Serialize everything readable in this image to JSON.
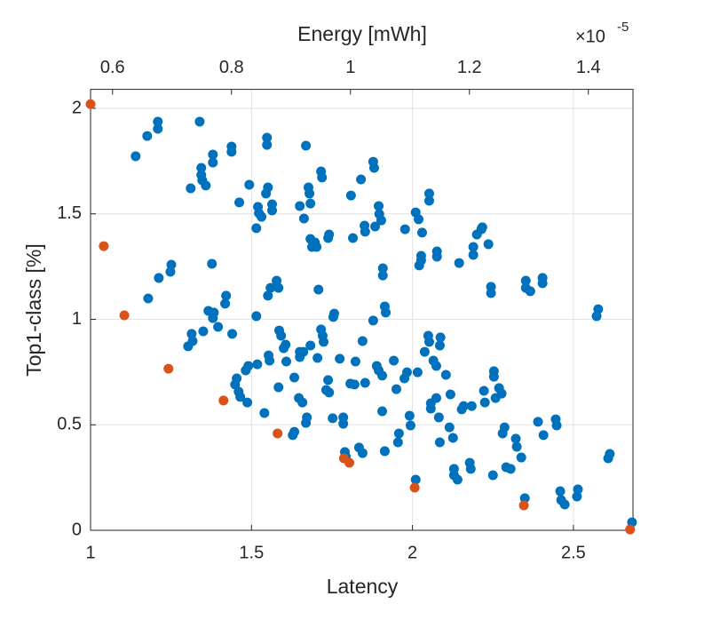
{
  "chart_data": {
    "type": "scatter",
    "xlabel": "Latency",
    "ylabel": "Top1-class [%]",
    "x2label": "Energy [mWh]",
    "x2_multiplier": "×10",
    "x2_exponent": "-5",
    "xlim": [
      1,
      2.685
    ],
    "xticks": [
      1,
      1.5,
      2,
      2.5
    ],
    "x2lim": [
      0.563,
      1.475
    ],
    "x2ticks": [
      0.6,
      0.8,
      1,
      1.2,
      1.4
    ],
    "ylim": [
      0,
      2.09
    ],
    "yticks": [
      0,
      0.5,
      1,
      1.5,
      2
    ],
    "grid": true,
    "series": [
      {
        "color": "#0072BD",
        "x": [
          1.14,
          1.176,
          1.209,
          1.209,
          1.339,
          1.344,
          1.344,
          1.347,
          1.358,
          1.311,
          1.38,
          1.38,
          1.377,
          1.438,
          1.438,
          1.462,
          1.493,
          1.515,
          1.52,
          1.523,
          1.531,
          1.545,
          1.548,
          1.548,
          1.551,
          1.564,
          1.564,
          1.65,
          1.663,
          1.669,
          1.677,
          1.68,
          1.683,
          1.683,
          1.688,
          1.697,
          1.702,
          1.716,
          1.719,
          1.738,
          1.741,
          1.815,
          1.809,
          1.84,
          1.853,
          1.851,
          1.878,
          1.881,
          1.884,
          1.895,
          1.897,
          1.903,
          1.908,
          1.908,
          1.977,
          2.01,
          2.019,
          2.021,
          2.027,
          2.027,
          2.03,
          2.052,
          2.052,
          2.076,
          2.076,
          2.145,
          2.189,
          2.189,
          2.2,
          2.214,
          2.217,
          2.244,
          2.244,
          2.236,
          1.179,
          1.212,
          1.248,
          1.251,
          1.303,
          1.314,
          1.317,
          1.35,
          1.366,
          1.38,
          1.383,
          1.396,
          1.418,
          1.421,
          1.44,
          1.449,
          1.454,
          1.46,
          1.465,
          1.482,
          1.49,
          1.515,
          1.518,
          1.551,
          1.559,
          1.553,
          1.556,
          1.578,
          1.584,
          1.584,
          1.592,
          1.586,
          1.6,
          1.606,
          1.608,
          1.633,
          1.65,
          1.65,
          1.661,
          1.683,
          1.705,
          1.708,
          1.716,
          1.721,
          1.724,
          1.732,
          1.738,
          1.741,
          1.754,
          1.757,
          1.774,
          1.807,
          1.82,
          1.823,
          1.845,
          1.853,
          1.878,
          1.889,
          1.895,
          1.906,
          1.914,
          1.917,
          1.942,
          1.95,
          1.975,
          1.983,
          2.016,
          2.038,
          2.049,
          2.052,
          2.065,
          2.074,
          2.087,
          2.085,
          2.104,
          2.253,
          2.253,
          2.269,
          2.277,
          2.352,
          2.352,
          2.366,
          2.404,
          2.404,
          2.572,
          2.577,
          1.487,
          1.54,
          1.628,
          1.633,
          1.647,
          1.658,
          1.672,
          1.669,
          1.752,
          1.785,
          1.785,
          1.79,
          1.793,
          1.834,
          1.845,
          1.906,
          1.914,
          1.955,
          1.958,
          1.991,
          1.994,
          2.01,
          2.057,
          2.057,
          2.074,
          2.082,
          2.085,
          2.115,
          2.118,
          2.126,
          2.129,
          2.129,
          2.14,
          2.153,
          2.159,
          2.178,
          2.181,
          2.184,
          2.222,
          2.225,
          2.25,
          2.258,
          2.28,
          2.286,
          2.291,
          2.305,
          2.321,
          2.324,
          2.338,
          2.349,
          2.39,
          2.407,
          2.445,
          2.448,
          2.459,
          2.462,
          2.473,
          2.511,
          2.514,
          2.608,
          2.613,
          2.682
        ],
        "y": [
          1.773,
          1.869,
          1.937,
          1.903,
          1.937,
          1.718,
          1.684,
          1.659,
          1.634,
          1.621,
          1.781,
          1.743,
          1.263,
          1.819,
          1.794,
          1.554,
          1.638,
          1.432,
          1.533,
          1.503,
          1.486,
          1.596,
          1.827,
          1.861,
          1.625,
          1.545,
          1.516,
          1.537,
          1.478,
          1.823,
          1.625,
          1.596,
          1.549,
          1.381,
          1.343,
          1.364,
          1.343,
          1.701,
          1.672,
          1.385,
          1.402,
          1.385,
          1.587,
          1.663,
          1.415,
          1.444,
          1.747,
          1.718,
          1.44,
          1.537,
          1.499,
          1.469,
          1.242,
          1.208,
          1.427,
          1.507,
          1.474,
          1.255,
          1.28,
          1.301,
          1.411,
          1.562,
          1.596,
          1.297,
          1.322,
          1.267,
          1.305,
          1.343,
          1.402,
          1.427,
          1.436,
          1.124,
          1.154,
          1.356,
          1.099,
          1.196,
          1.225,
          1.259,
          0.872,
          0.931,
          0.897,
          0.943,
          1.04,
          1.006,
          1.032,
          0.964,
          1.074,
          1.112,
          0.931,
          0.691,
          0.72,
          0.657,
          0.632,
          0.758,
          0.779,
          1.015,
          0.787,
          1.112,
          1.149,
          0.829,
          0.804,
          1.183,
          1.149,
          0.678,
          0.922,
          0.947,
          0.863,
          0.88,
          0.8,
          0.724,
          0.821,
          0.846,
          0.846,
          0.876,
          0.817,
          1.141,
          0.952,
          0.922,
          0.893,
          0.665,
          0.712,
          0.653,
          1.011,
          1.027,
          0.813,
          0.695,
          0.691,
          0.8,
          0.897,
          0.699,
          0.994,
          0.779,
          0.758,
          0.733,
          1.061,
          1.032,
          0.804,
          0.669,
          0.72,
          0.749,
          0.749,
          0.846,
          0.922,
          0.893,
          0.804,
          0.779,
          0.914,
          0.876,
          0.737,
          0.728,
          0.754,
          0.674,
          0.648,
          1.183,
          1.149,
          1.133,
          1.196,
          1.171,
          1.015,
          1.048,
          0.606,
          0.556,
          0.451,
          0.467,
          0.627,
          0.606,
          0.535,
          0.509,
          0.531,
          0.535,
          0.505,
          0.371,
          0.349,
          0.392,
          0.366,
          0.564,
          0.375,
          0.417,
          0.459,
          0.543,
          0.497,
          0.24,
          0.577,
          0.602,
          0.627,
          0.535,
          0.417,
          0.488,
          0.644,
          0.438,
          0.291,
          0.261,
          0.24,
          0.573,
          0.589,
          0.32,
          0.291,
          0.589,
          0.661,
          0.606,
          0.261,
          0.627,
          0.459,
          0.488,
          0.299,
          0.291,
          0.434,
          0.396,
          0.345,
          0.152,
          0.514,
          0.451,
          0.526,
          0.497,
          0.185,
          0.143,
          0.122,
          0.16,
          0.194,
          0.341,
          0.362,
          0.038
        ]
      },
      {
        "color": "#D95319",
        "x": [
          1.0,
          1.041,
          1.105,
          1.242,
          1.413,
          1.581,
          1.787,
          1.804,
          2.007,
          2.346,
          2.676
        ],
        "y": [
          2.02,
          1.347,
          1.019,
          0.766,
          0.615,
          0.459,
          0.341,
          0.32,
          0.202,
          0.118,
          0.004
        ]
      }
    ]
  }
}
